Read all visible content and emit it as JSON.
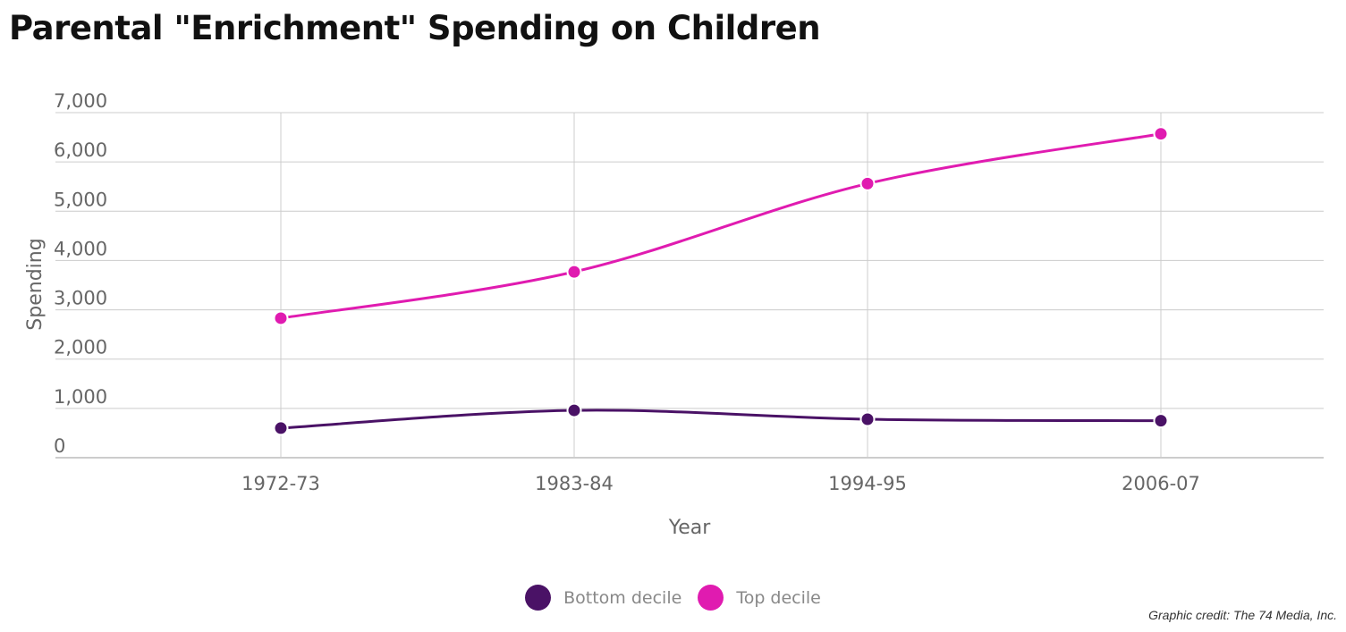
{
  "chart_data": {
    "type": "line",
    "title": "Parental \"Enrichment\" Spending on Children",
    "xlabel": "Year",
    "ylabel": "Spending",
    "categories": [
      "1972-73",
      "1983-84",
      "1994-95",
      "2006-07"
    ],
    "ylim": [
      0,
      7000
    ],
    "yticks": [
      0,
      1000,
      2000,
      3000,
      4000,
      5000,
      6000,
      7000
    ],
    "ytick_labels": [
      "0",
      "1,000",
      "2,000",
      "3,000",
      "4,000",
      "5,000",
      "6,000",
      "7,000"
    ],
    "grid": true,
    "legend_position": "bottom-center",
    "series": [
      {
        "name": "Bottom decile",
        "color": "#4a1266",
        "values": [
          600,
          960,
          780,
          750
        ]
      },
      {
        "name": "Top decile",
        "color": "#e01bb0",
        "values": [
          2830,
          3770,
          5560,
          6570
        ]
      }
    ]
  },
  "credit": "Graphic credit: The 74 Media, Inc."
}
